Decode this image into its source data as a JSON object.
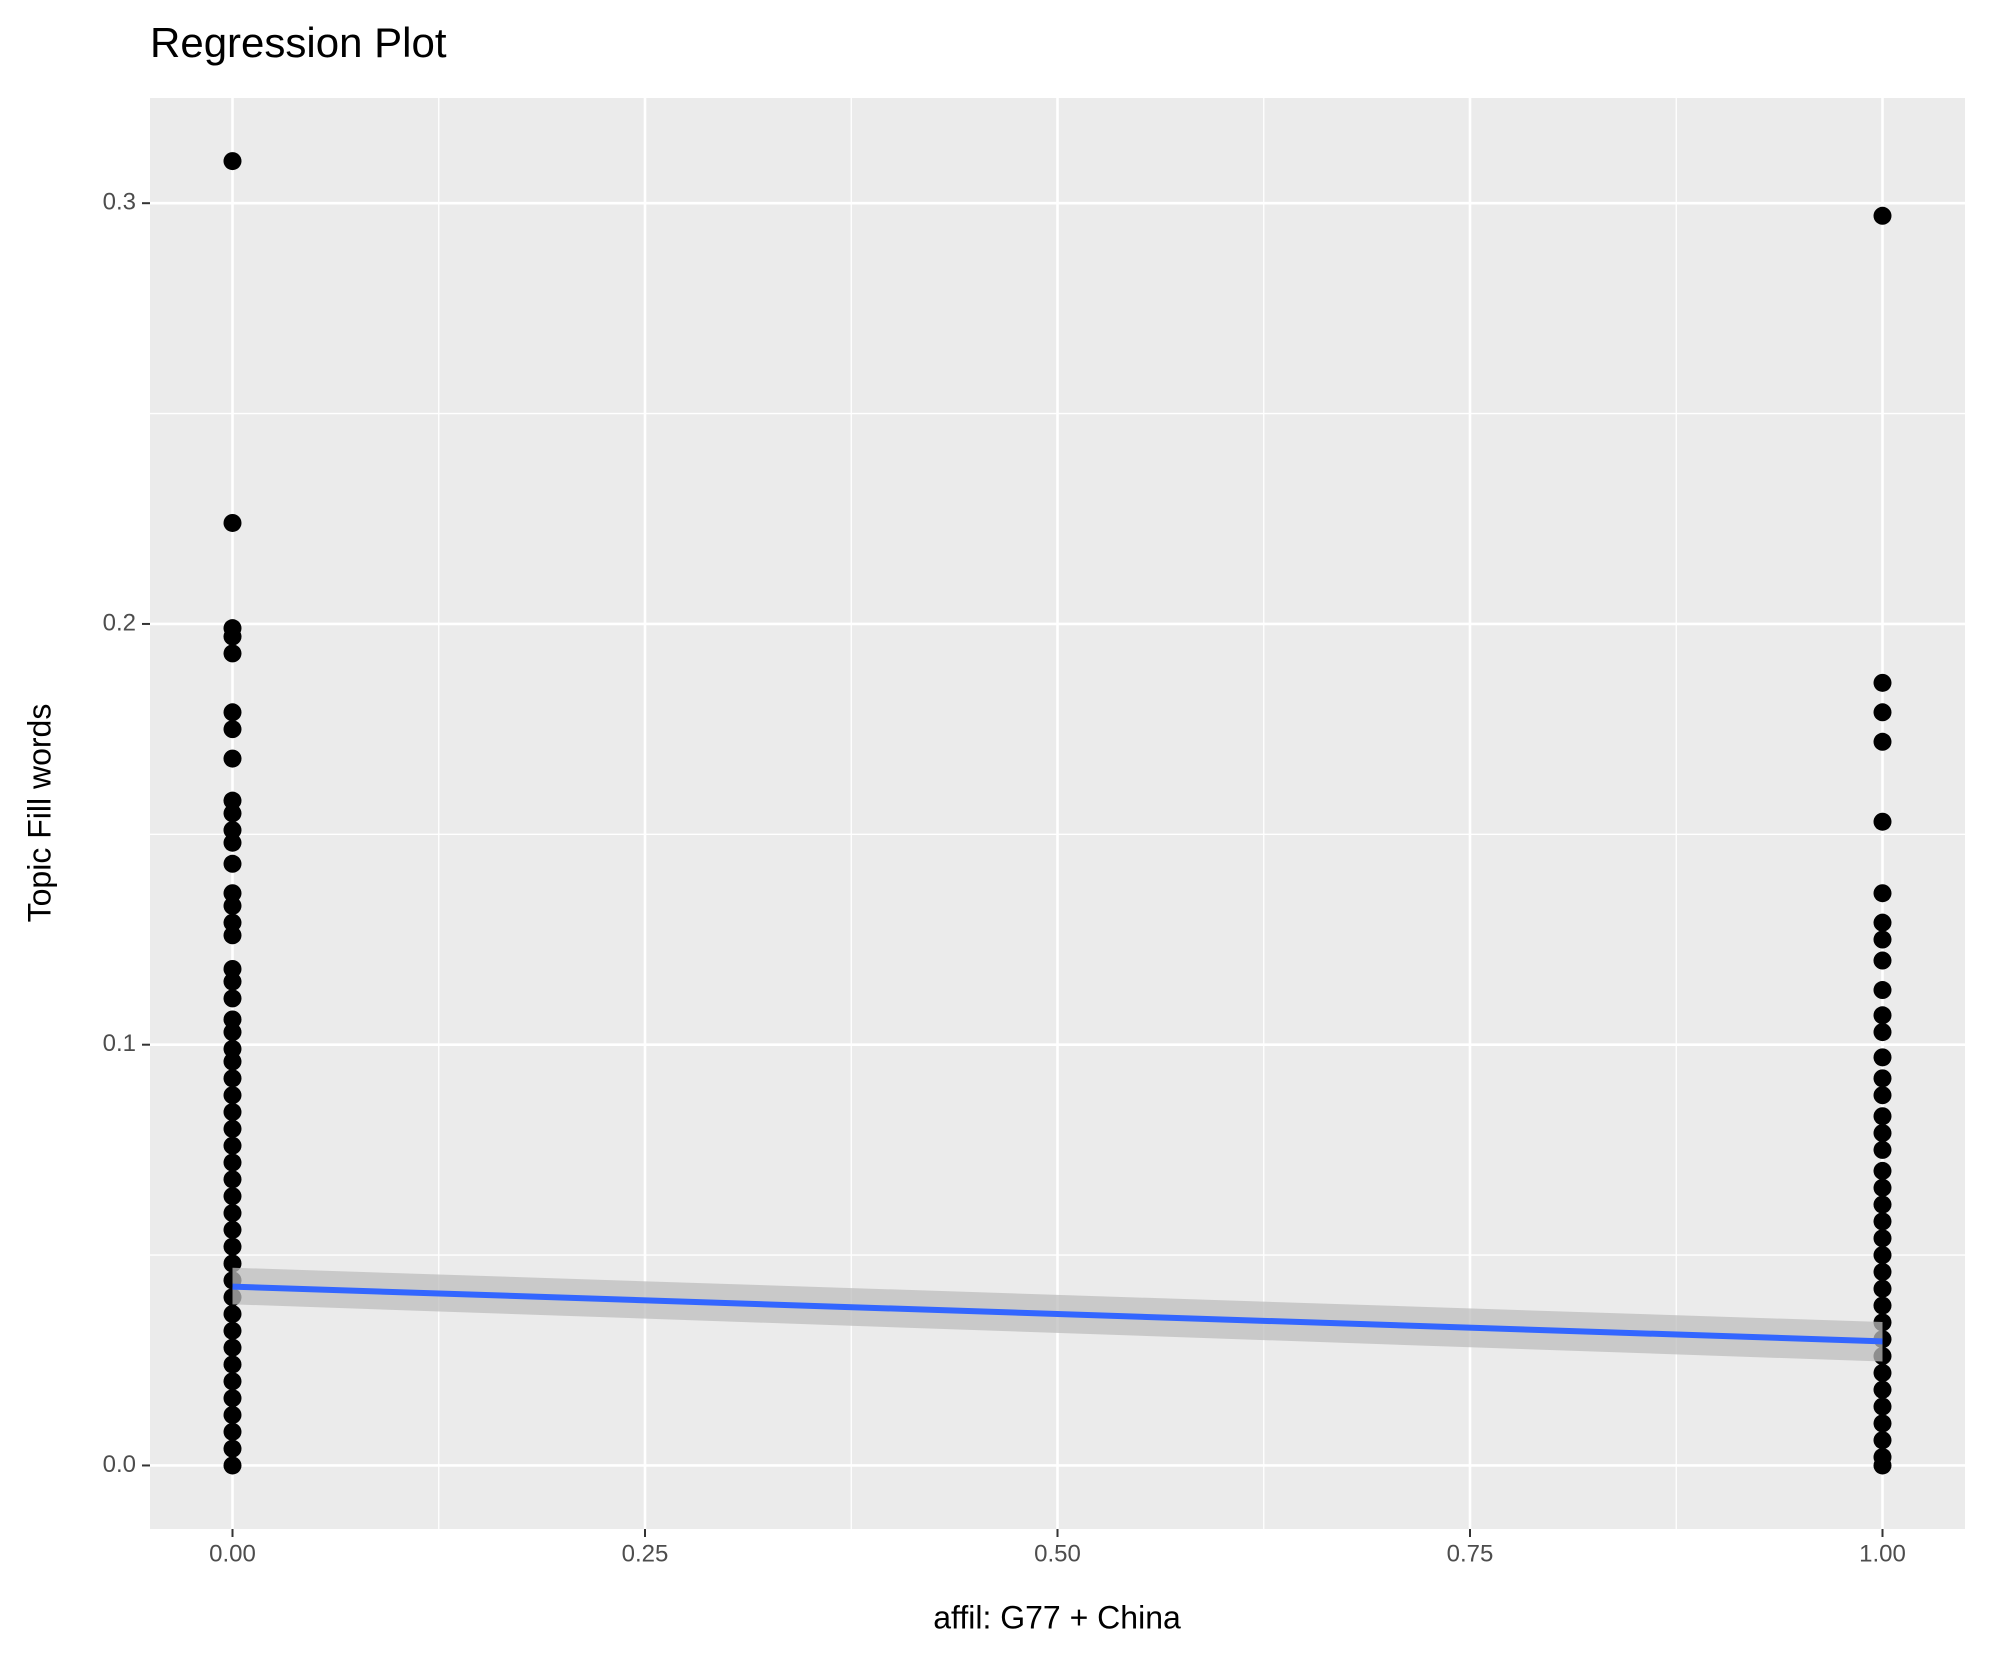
{
  "chart_data": {
    "type": "scatter",
    "title": "Regression Plot",
    "x_label": "affil: G77 + China",
    "y_label": "Topic Fill words",
    "xlim": [
      -0.05,
      1.05
    ],
    "ylim": [
      -0.0151,
      0.325
    ],
    "xticks": [
      {
        "value": 0,
        "label": "0.00"
      },
      {
        "value": 0.25,
        "label": "0.25"
      },
      {
        "value": 0.5,
        "label": "0.50"
      },
      {
        "value": 0.75,
        "label": "0.75"
      },
      {
        "value": 1,
        "label": "1.00"
      }
    ],
    "yticks": [
      {
        "value": 0,
        "label": "0.0"
      },
      0.1,
      0.2,
      0.3
    ],
    "x_minor_breaks": [
      0.125,
      0.375,
      0.625,
      0.875
    ],
    "y_minor_breaks": [
      0.05,
      0.15,
      0.25
    ],
    "grid": true,
    "point_color": "#000000",
    "groups": [
      {
        "x": 0,
        "values": [
          0.31,
          0.224,
          0.199,
          0.197,
          0.193,
          0.179,
          0.175,
          0.168,
          0.158,
          0.155,
          0.151,
          0.148,
          0.143,
          0.136,
          0.133,
          0.129,
          0.126,
          0.118,
          0.115,
          0.111,
          0.106,
          0.103,
          0.099,
          0.096,
          0.092,
          0.088,
          0.084,
          0.08,
          0.076,
          0.072,
          0.068,
          0.064,
          0.06,
          0.056,
          0.052,
          0.048,
          0.044,
          0.04,
          0.036,
          0.032,
          0.028,
          0.024,
          0.02,
          0.016,
          0.012,
          0.008,
          0.004,
          0.0
        ]
      },
      {
        "x": 1,
        "values": [
          0.297,
          0.186,
          0.179,
          0.172,
          0.153,
          0.136,
          0.129,
          0.125,
          0.12,
          0.113,
          0.107,
          0.103,
          0.097,
          0.092,
          0.088,
          0.083,
          0.079,
          0.075,
          0.07,
          0.066,
          0.062,
          0.058,
          0.054,
          0.05,
          0.046,
          0.042,
          0.038,
          0.034,
          0.03,
          0.026,
          0.022,
          0.018,
          0.014,
          0.01,
          0.006,
          0.002,
          0.0
        ]
      }
    ],
    "fit": {
      "color": "#3366ff",
      "band_color": "#bebebe",
      "x": [
        0,
        1
      ],
      "y": [
        0.0425,
        0.0295
      ],
      "lower": [
        0.0383,
        0.0247
      ],
      "upper": [
        0.047,
        0.0341
      ]
    }
  }
}
